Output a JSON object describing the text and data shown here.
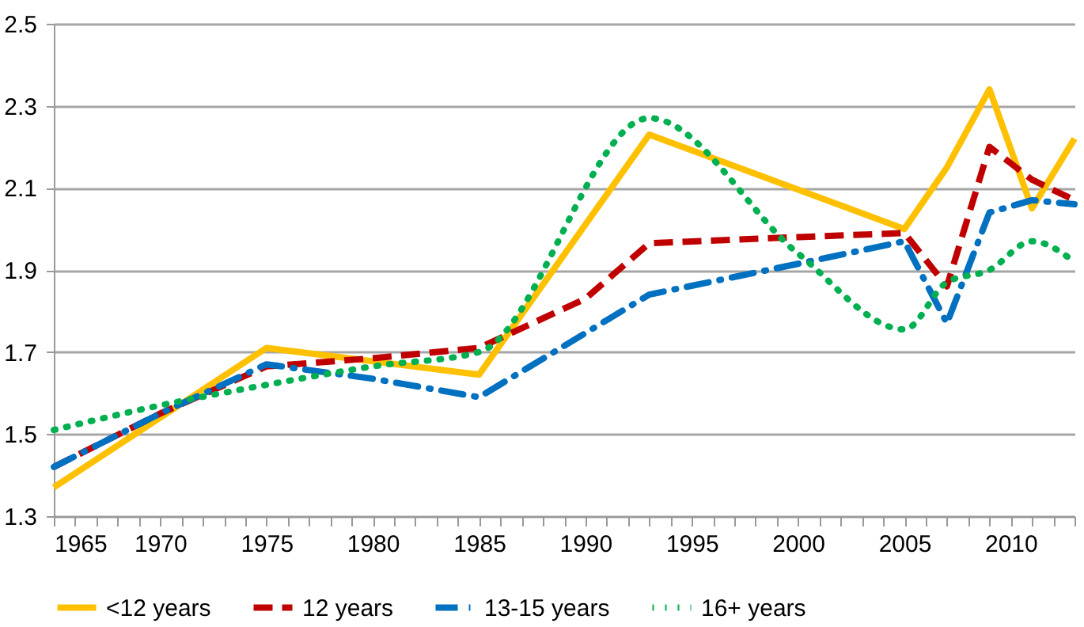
{
  "chart_data": {
    "type": "line",
    "xlim": [
      1965,
      2013
    ],
    "xticks": [
      1965,
      {
        "value": 1966,
        "label": null
      },
      {
        "value": 1967,
        "label": null
      },
      {
        "value": 1968,
        "label": null
      },
      {
        "value": 1969,
        "label": null
      },
      1970,
      {
        "value": 1971,
        "label": null
      },
      {
        "value": 1972,
        "label": null
      },
      {
        "value": 1973,
        "label": null
      },
      {
        "value": 1974,
        "label": null
      },
      1975,
      {
        "value": 1976,
        "label": null
      },
      {
        "value": 1977,
        "label": null
      },
      {
        "value": 1978,
        "label": null
      },
      {
        "value": 1979,
        "label": null
      },
      1980,
      {
        "value": 1981,
        "label": null
      },
      {
        "value": 1982,
        "label": null
      },
      {
        "value": 1983,
        "label": null
      },
      {
        "value": 1984,
        "label": null
      },
      1985,
      {
        "value": 1986,
        "label": null
      },
      {
        "value": 1987,
        "label": null
      },
      {
        "value": 1988,
        "label": null
      },
      {
        "value": 1989,
        "label": null
      },
      1990,
      {
        "value": 1991,
        "label": null
      },
      {
        "value": 1992,
        "label": null
      },
      {
        "value": 1993,
        "label": null
      },
      {
        "value": 1994,
        "label": null
      },
      1995,
      {
        "value": 1996,
        "label": null
      },
      {
        "value": 1997,
        "label": null
      },
      {
        "value": 1998,
        "label": null
      },
      {
        "value": 1999,
        "label": null
      },
      2000,
      {
        "value": 2001,
        "label": null
      },
      {
        "value": 2002,
        "label": null
      },
      {
        "value": 2003,
        "label": null
      },
      {
        "value": 2004,
        "label": null
      },
      2005,
      {
        "value": 2006,
        "label": null
      },
      {
        "value": 2007,
        "label": null
      },
      {
        "value": 2008,
        "label": null
      },
      {
        "value": 2009,
        "label": null
      },
      2010,
      {
        "value": 2011,
        "label": null
      },
      {
        "value": 2012,
        "label": null
      },
      {
        "value": 2013,
        "label": null
      }
    ],
    "ylim": [
      1.3,
      2.5
    ],
    "yticks": [
      1.3,
      1.5,
      1.7,
      1.9,
      2.1,
      2.3,
      2.5
    ],
    "grid": "y",
    "legend": "bottom",
    "series": [
      {
        "name": "<12 years",
        "color": "#ffc000",
        "line_style": "solid",
        "x": [
          1965,
          1975,
          1985,
          1993,
          2005,
          2007,
          2009,
          2011,
          2013
        ],
        "values": [
          1.37,
          1.71,
          1.645,
          2.23,
          2.0,
          2.15,
          2.34,
          2.05,
          2.22
        ]
      },
      {
        "name": "12 years",
        "color": "#c00000",
        "line_style": "dashed",
        "x": [
          1965,
          1970,
          1975,
          1980,
          1985,
          1990,
          1993,
          2000,
          2005,
          2007,
          2009,
          2011,
          2013
        ],
        "values": [
          1.42,
          1.55,
          1.665,
          1.685,
          1.71,
          1.83,
          1.965,
          1.98,
          1.99,
          1.86,
          2.2,
          2.12,
          2.07
        ]
      },
      {
        "name": "13-15 years",
        "color": "#0070c0",
        "line_style": "dashdot",
        "x": [
          1965,
          1970,
          1975,
          1980,
          1985,
          1993,
          2000,
          2005,
          2007,
          2009,
          2011,
          2013
        ],
        "values": [
          1.42,
          1.55,
          1.67,
          1.635,
          1.59,
          1.84,
          1.915,
          1.97,
          1.77,
          2.04,
          2.07,
          2.06
        ]
      },
      {
        "name": "16+ years",
        "color": "#00b050",
        "line_style": "dotted",
        "x": [
          1965,
          1970,
          1975,
          1980,
          1985,
          1993,
          2000,
          2005,
          2007,
          2009,
          2011,
          2013
        ],
        "values": [
          1.51,
          1.57,
          1.62,
          1.665,
          1.7,
          2.27,
          1.94,
          1.755,
          1.87,
          1.9,
          1.97,
          1.92
        ]
      }
    ]
  }
}
